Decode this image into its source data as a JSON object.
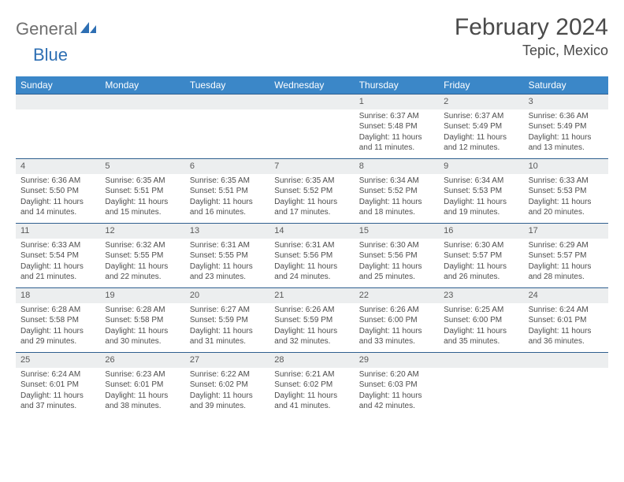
{
  "brand": {
    "text1": "General",
    "text2": "Blue"
  },
  "title": "February 2024",
  "location": "Tepic, Mexico",
  "style": {
    "header_bg": "#3b87c8",
    "header_text": "#ffffff",
    "daynum_bg": "#eceeef",
    "daynum_border": "#2f5f8f",
    "body_text": "#4d4d4d",
    "title_color": "#4a4a4a",
    "logo_gray": "#6f6f6f",
    "logo_blue": "#2e6fb3",
    "title_fontsize": 30,
    "location_fontsize": 18,
    "header_fontsize": 12,
    "body_fontsize": 10
  },
  "weekdays": [
    "Sunday",
    "Monday",
    "Tuesday",
    "Wednesday",
    "Thursday",
    "Friday",
    "Saturday"
  ],
  "weeks": [
    [
      null,
      null,
      null,
      null,
      {
        "n": "1",
        "sunrise": "Sunrise: 6:37 AM",
        "sunset": "Sunset: 5:48 PM",
        "day1": "Daylight: 11 hours",
        "day2": "and 11 minutes."
      },
      {
        "n": "2",
        "sunrise": "Sunrise: 6:37 AM",
        "sunset": "Sunset: 5:49 PM",
        "day1": "Daylight: 11 hours",
        "day2": "and 12 minutes."
      },
      {
        "n": "3",
        "sunrise": "Sunrise: 6:36 AM",
        "sunset": "Sunset: 5:49 PM",
        "day1": "Daylight: 11 hours",
        "day2": "and 13 minutes."
      }
    ],
    [
      {
        "n": "4",
        "sunrise": "Sunrise: 6:36 AM",
        "sunset": "Sunset: 5:50 PM",
        "day1": "Daylight: 11 hours",
        "day2": "and 14 minutes."
      },
      {
        "n": "5",
        "sunrise": "Sunrise: 6:35 AM",
        "sunset": "Sunset: 5:51 PM",
        "day1": "Daylight: 11 hours",
        "day2": "and 15 minutes."
      },
      {
        "n": "6",
        "sunrise": "Sunrise: 6:35 AM",
        "sunset": "Sunset: 5:51 PM",
        "day1": "Daylight: 11 hours",
        "day2": "and 16 minutes."
      },
      {
        "n": "7",
        "sunrise": "Sunrise: 6:35 AM",
        "sunset": "Sunset: 5:52 PM",
        "day1": "Daylight: 11 hours",
        "day2": "and 17 minutes."
      },
      {
        "n": "8",
        "sunrise": "Sunrise: 6:34 AM",
        "sunset": "Sunset: 5:52 PM",
        "day1": "Daylight: 11 hours",
        "day2": "and 18 minutes."
      },
      {
        "n": "9",
        "sunrise": "Sunrise: 6:34 AM",
        "sunset": "Sunset: 5:53 PM",
        "day1": "Daylight: 11 hours",
        "day2": "and 19 minutes."
      },
      {
        "n": "10",
        "sunrise": "Sunrise: 6:33 AM",
        "sunset": "Sunset: 5:53 PM",
        "day1": "Daylight: 11 hours",
        "day2": "and 20 minutes."
      }
    ],
    [
      {
        "n": "11",
        "sunrise": "Sunrise: 6:33 AM",
        "sunset": "Sunset: 5:54 PM",
        "day1": "Daylight: 11 hours",
        "day2": "and 21 minutes."
      },
      {
        "n": "12",
        "sunrise": "Sunrise: 6:32 AM",
        "sunset": "Sunset: 5:55 PM",
        "day1": "Daylight: 11 hours",
        "day2": "and 22 minutes."
      },
      {
        "n": "13",
        "sunrise": "Sunrise: 6:31 AM",
        "sunset": "Sunset: 5:55 PM",
        "day1": "Daylight: 11 hours",
        "day2": "and 23 minutes."
      },
      {
        "n": "14",
        "sunrise": "Sunrise: 6:31 AM",
        "sunset": "Sunset: 5:56 PM",
        "day1": "Daylight: 11 hours",
        "day2": "and 24 minutes."
      },
      {
        "n": "15",
        "sunrise": "Sunrise: 6:30 AM",
        "sunset": "Sunset: 5:56 PM",
        "day1": "Daylight: 11 hours",
        "day2": "and 25 minutes."
      },
      {
        "n": "16",
        "sunrise": "Sunrise: 6:30 AM",
        "sunset": "Sunset: 5:57 PM",
        "day1": "Daylight: 11 hours",
        "day2": "and 26 minutes."
      },
      {
        "n": "17",
        "sunrise": "Sunrise: 6:29 AM",
        "sunset": "Sunset: 5:57 PM",
        "day1": "Daylight: 11 hours",
        "day2": "and 28 minutes."
      }
    ],
    [
      {
        "n": "18",
        "sunrise": "Sunrise: 6:28 AM",
        "sunset": "Sunset: 5:58 PM",
        "day1": "Daylight: 11 hours",
        "day2": "and 29 minutes."
      },
      {
        "n": "19",
        "sunrise": "Sunrise: 6:28 AM",
        "sunset": "Sunset: 5:58 PM",
        "day1": "Daylight: 11 hours",
        "day2": "and 30 minutes."
      },
      {
        "n": "20",
        "sunrise": "Sunrise: 6:27 AM",
        "sunset": "Sunset: 5:59 PM",
        "day1": "Daylight: 11 hours",
        "day2": "and 31 minutes."
      },
      {
        "n": "21",
        "sunrise": "Sunrise: 6:26 AM",
        "sunset": "Sunset: 5:59 PM",
        "day1": "Daylight: 11 hours",
        "day2": "and 32 minutes."
      },
      {
        "n": "22",
        "sunrise": "Sunrise: 6:26 AM",
        "sunset": "Sunset: 6:00 PM",
        "day1": "Daylight: 11 hours",
        "day2": "and 33 minutes."
      },
      {
        "n": "23",
        "sunrise": "Sunrise: 6:25 AM",
        "sunset": "Sunset: 6:00 PM",
        "day1": "Daylight: 11 hours",
        "day2": "and 35 minutes."
      },
      {
        "n": "24",
        "sunrise": "Sunrise: 6:24 AM",
        "sunset": "Sunset: 6:01 PM",
        "day1": "Daylight: 11 hours",
        "day2": "and 36 minutes."
      }
    ],
    [
      {
        "n": "25",
        "sunrise": "Sunrise: 6:24 AM",
        "sunset": "Sunset: 6:01 PM",
        "day1": "Daylight: 11 hours",
        "day2": "and 37 minutes."
      },
      {
        "n": "26",
        "sunrise": "Sunrise: 6:23 AM",
        "sunset": "Sunset: 6:01 PM",
        "day1": "Daylight: 11 hours",
        "day2": "and 38 minutes."
      },
      {
        "n": "27",
        "sunrise": "Sunrise: 6:22 AM",
        "sunset": "Sunset: 6:02 PM",
        "day1": "Daylight: 11 hours",
        "day2": "and 39 minutes."
      },
      {
        "n": "28",
        "sunrise": "Sunrise: 6:21 AM",
        "sunset": "Sunset: 6:02 PM",
        "day1": "Daylight: 11 hours",
        "day2": "and 41 minutes."
      },
      {
        "n": "29",
        "sunrise": "Sunrise: 6:20 AM",
        "sunset": "Sunset: 6:03 PM",
        "day1": "Daylight: 11 hours",
        "day2": "and 42 minutes."
      },
      null,
      null
    ]
  ]
}
